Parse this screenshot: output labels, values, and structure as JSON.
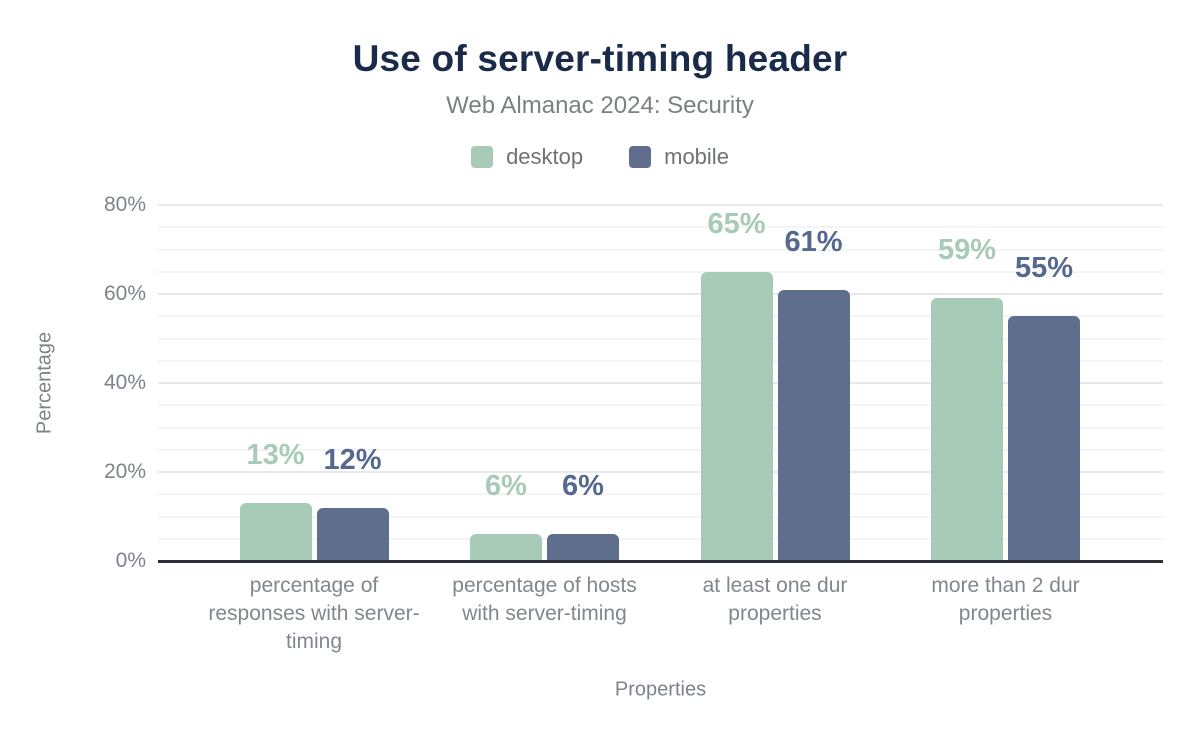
{
  "chart_data": {
    "type": "bar",
    "title": "Use of server-timing header",
    "subtitle": "Web Almanac 2024: Security",
    "xlabel": "Properties",
    "ylabel": "Percentage",
    "ylim": [
      0,
      80
    ],
    "ytick_step": 20,
    "yminor_step": 5,
    "ytick_suffix": "%",
    "grid": true,
    "legend_position": "top",
    "categories": [
      "percentage of responses with server-timing",
      "percentage of hosts with server-timing",
      "at least one dur properties",
      "more than 2 dur properties"
    ],
    "series": [
      {
        "name": "desktop",
        "color": "#a8cbb8",
        "label_color": "#a8cbb8",
        "values": [
          13,
          6,
          65,
          59
        ],
        "labels": [
          "13%",
          "6%",
          "65%",
          "59%"
        ]
      },
      {
        "name": "mobile",
        "color": "#5e6e8c",
        "label_color": "#55698f",
        "values": [
          12,
          6,
          61,
          55
        ],
        "labels": [
          "12%",
          "6%",
          "61%",
          "55%"
        ]
      }
    ],
    "colors": {
      "title": "#1a2b49",
      "subtitle": "#7d8083",
      "axis_text": "#7e828a",
      "axis_line": "#2b2e35",
      "grid_major": "#e8e8ea",
      "grid_minor": "#f4f4f5"
    }
  }
}
